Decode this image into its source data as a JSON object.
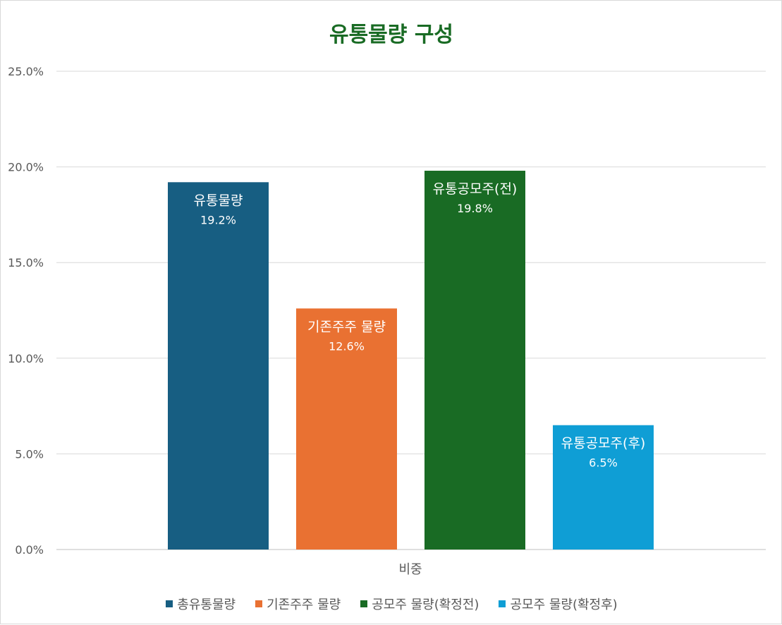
{
  "chart_data": {
    "type": "bar",
    "title": "유통물량 구성",
    "xlabel": "비중",
    "ylabel": "",
    "ylim": [
      0,
      25
    ],
    "yticks": [
      "0.0%",
      "5.0%",
      "10.0%",
      "15.0%",
      "20.0%",
      "25.0%"
    ],
    "grid": true,
    "legend_position": "bottom",
    "category": "비중",
    "series": [
      {
        "name": "총유통물량",
        "value": 19.2,
        "value_label": "19.2%",
        "bar_label": "유통물량",
        "color": "#175e82"
      },
      {
        "name": "기존주주 물량",
        "value": 12.6,
        "value_label": "12.6%",
        "bar_label": "기존주주 물량",
        "color": "#e97132"
      },
      {
        "name": "공모주 물량(확정전)",
        "value": 19.8,
        "value_label": "19.8%",
        "bar_label": "유통공모주(전)",
        "color": "#196b24"
      },
      {
        "name": "공모주 물량(확정후)",
        "value": 6.5,
        "value_label": "6.5%",
        "bar_label": "유통공모주(후)",
        "color": "#0f9ed5"
      }
    ],
    "title_color": "#196b24"
  }
}
